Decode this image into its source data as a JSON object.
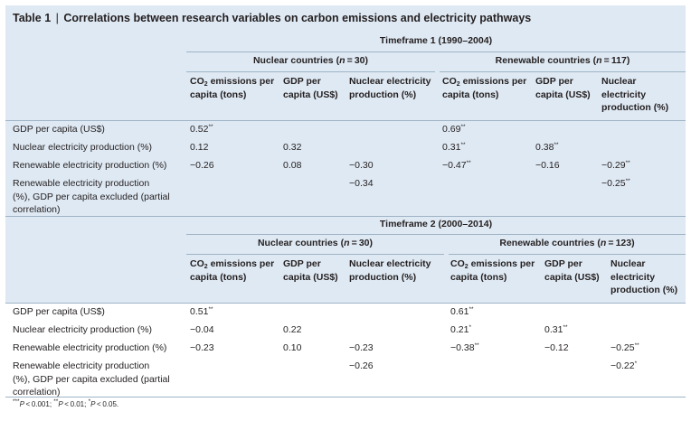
{
  "table": {
    "label": "Table 1",
    "separator": "|",
    "title": "Correlations between research variables on carbon emissions and electricity pathways"
  },
  "row_labels": [
    "GDP per capita (US$)",
    "Nuclear electricity production (%)",
    "Renewable electricity production (%)",
    "Renewable electricity production (%), GDP per capita excluded (partial correlation)"
  ],
  "row_label_lines": {
    "gdp": "GDP per capita (US$)",
    "nuclear": "Nuclear electricity production (%)",
    "renewable": "Renewable electricity production (%)",
    "partial_1": "Renewable electricity production",
    "partial_2": "(%), GDP per capita excluded (partial",
    "partial_3": "correlation)"
  },
  "col_heads": {
    "co2_a": "CO",
    "co2_sub": "2",
    "co2_b": " emissions per",
    "co2_c": "capita (tons)",
    "gdp_a": "GDP per",
    "gdp_b": "capita (US$)",
    "nuc_a": "Nuclear electricity",
    "nuc_b": "production (%)",
    "nuc3_a": "Nuclear",
    "nuc3_b": "electricity",
    "nuc3_c": "production (%)"
  },
  "group_labels": {
    "nuclear_prefix": "Nuclear countries (",
    "renewable_prefix": "Renewable countries (",
    "n_letter": "n",
    "eq": " = ",
    "close": ")"
  },
  "timeframes": [
    {
      "label": "Timeframe 1 (1990–2004)",
      "nuclear_n": "30",
      "renewable_n": "117",
      "nuclear": [
        [
          "0.52",
          "",
          ""
        ],
        [
          "0.12",
          "0.32",
          ""
        ],
        [
          "−0.26",
          "0.08",
          "−0.30"
        ],
        [
          "",
          "",
          "−0.34"
        ]
      ],
      "nuclear_sig": [
        [
          "**",
          "",
          ""
        ],
        [
          "",
          "",
          ""
        ],
        [
          "",
          "",
          ""
        ],
        [
          "",
          "",
          ""
        ]
      ],
      "renewable": [
        [
          "0.69",
          "",
          ""
        ],
        [
          "0.31",
          "0.38",
          ""
        ],
        [
          "−0.47",
          "−0.16",
          "−0.29"
        ],
        [
          "",
          "",
          "−0.25"
        ]
      ],
      "renewable_sig": [
        [
          "**",
          "",
          ""
        ],
        [
          "**",
          "**",
          ""
        ],
        [
          "**",
          "",
          "**"
        ],
        [
          "",
          "",
          "**"
        ]
      ]
    },
    {
      "label": "Timeframe 2 (2000–2014)",
      "nuclear_n": "30",
      "renewable_n": "123",
      "nuclear": [
        [
          "0.51",
          "",
          ""
        ],
        [
          "−0.04",
          "0.22",
          ""
        ],
        [
          "−0.23",
          "0.10",
          "−0.23"
        ],
        [
          "",
          "",
          "−0.26"
        ]
      ],
      "nuclear_sig": [
        [
          "**",
          "",
          ""
        ],
        [
          "",
          "",
          ""
        ],
        [
          "",
          "",
          ""
        ],
        [
          "",
          "",
          ""
        ]
      ],
      "renewable": [
        [
          "0.61",
          "",
          ""
        ],
        [
          "0.21",
          "0.31",
          ""
        ],
        [
          "−0.38",
          "−0.12",
          "−0.25"
        ],
        [
          "",
          "",
          "−0.22"
        ]
      ],
      "renewable_sig": [
        [
          "**",
          "",
          ""
        ],
        [
          "*",
          "**",
          ""
        ],
        [
          "**",
          "",
          "**"
        ],
        [
          "",
          "",
          "*"
        ]
      ]
    }
  ],
  "footnote": {
    "s3": "***",
    "p": "P",
    "t1": " < 0.001; ",
    "s2": "**",
    "t2": " < 0.01; ",
    "s1": "*",
    "t3": " < 0.05."
  }
}
